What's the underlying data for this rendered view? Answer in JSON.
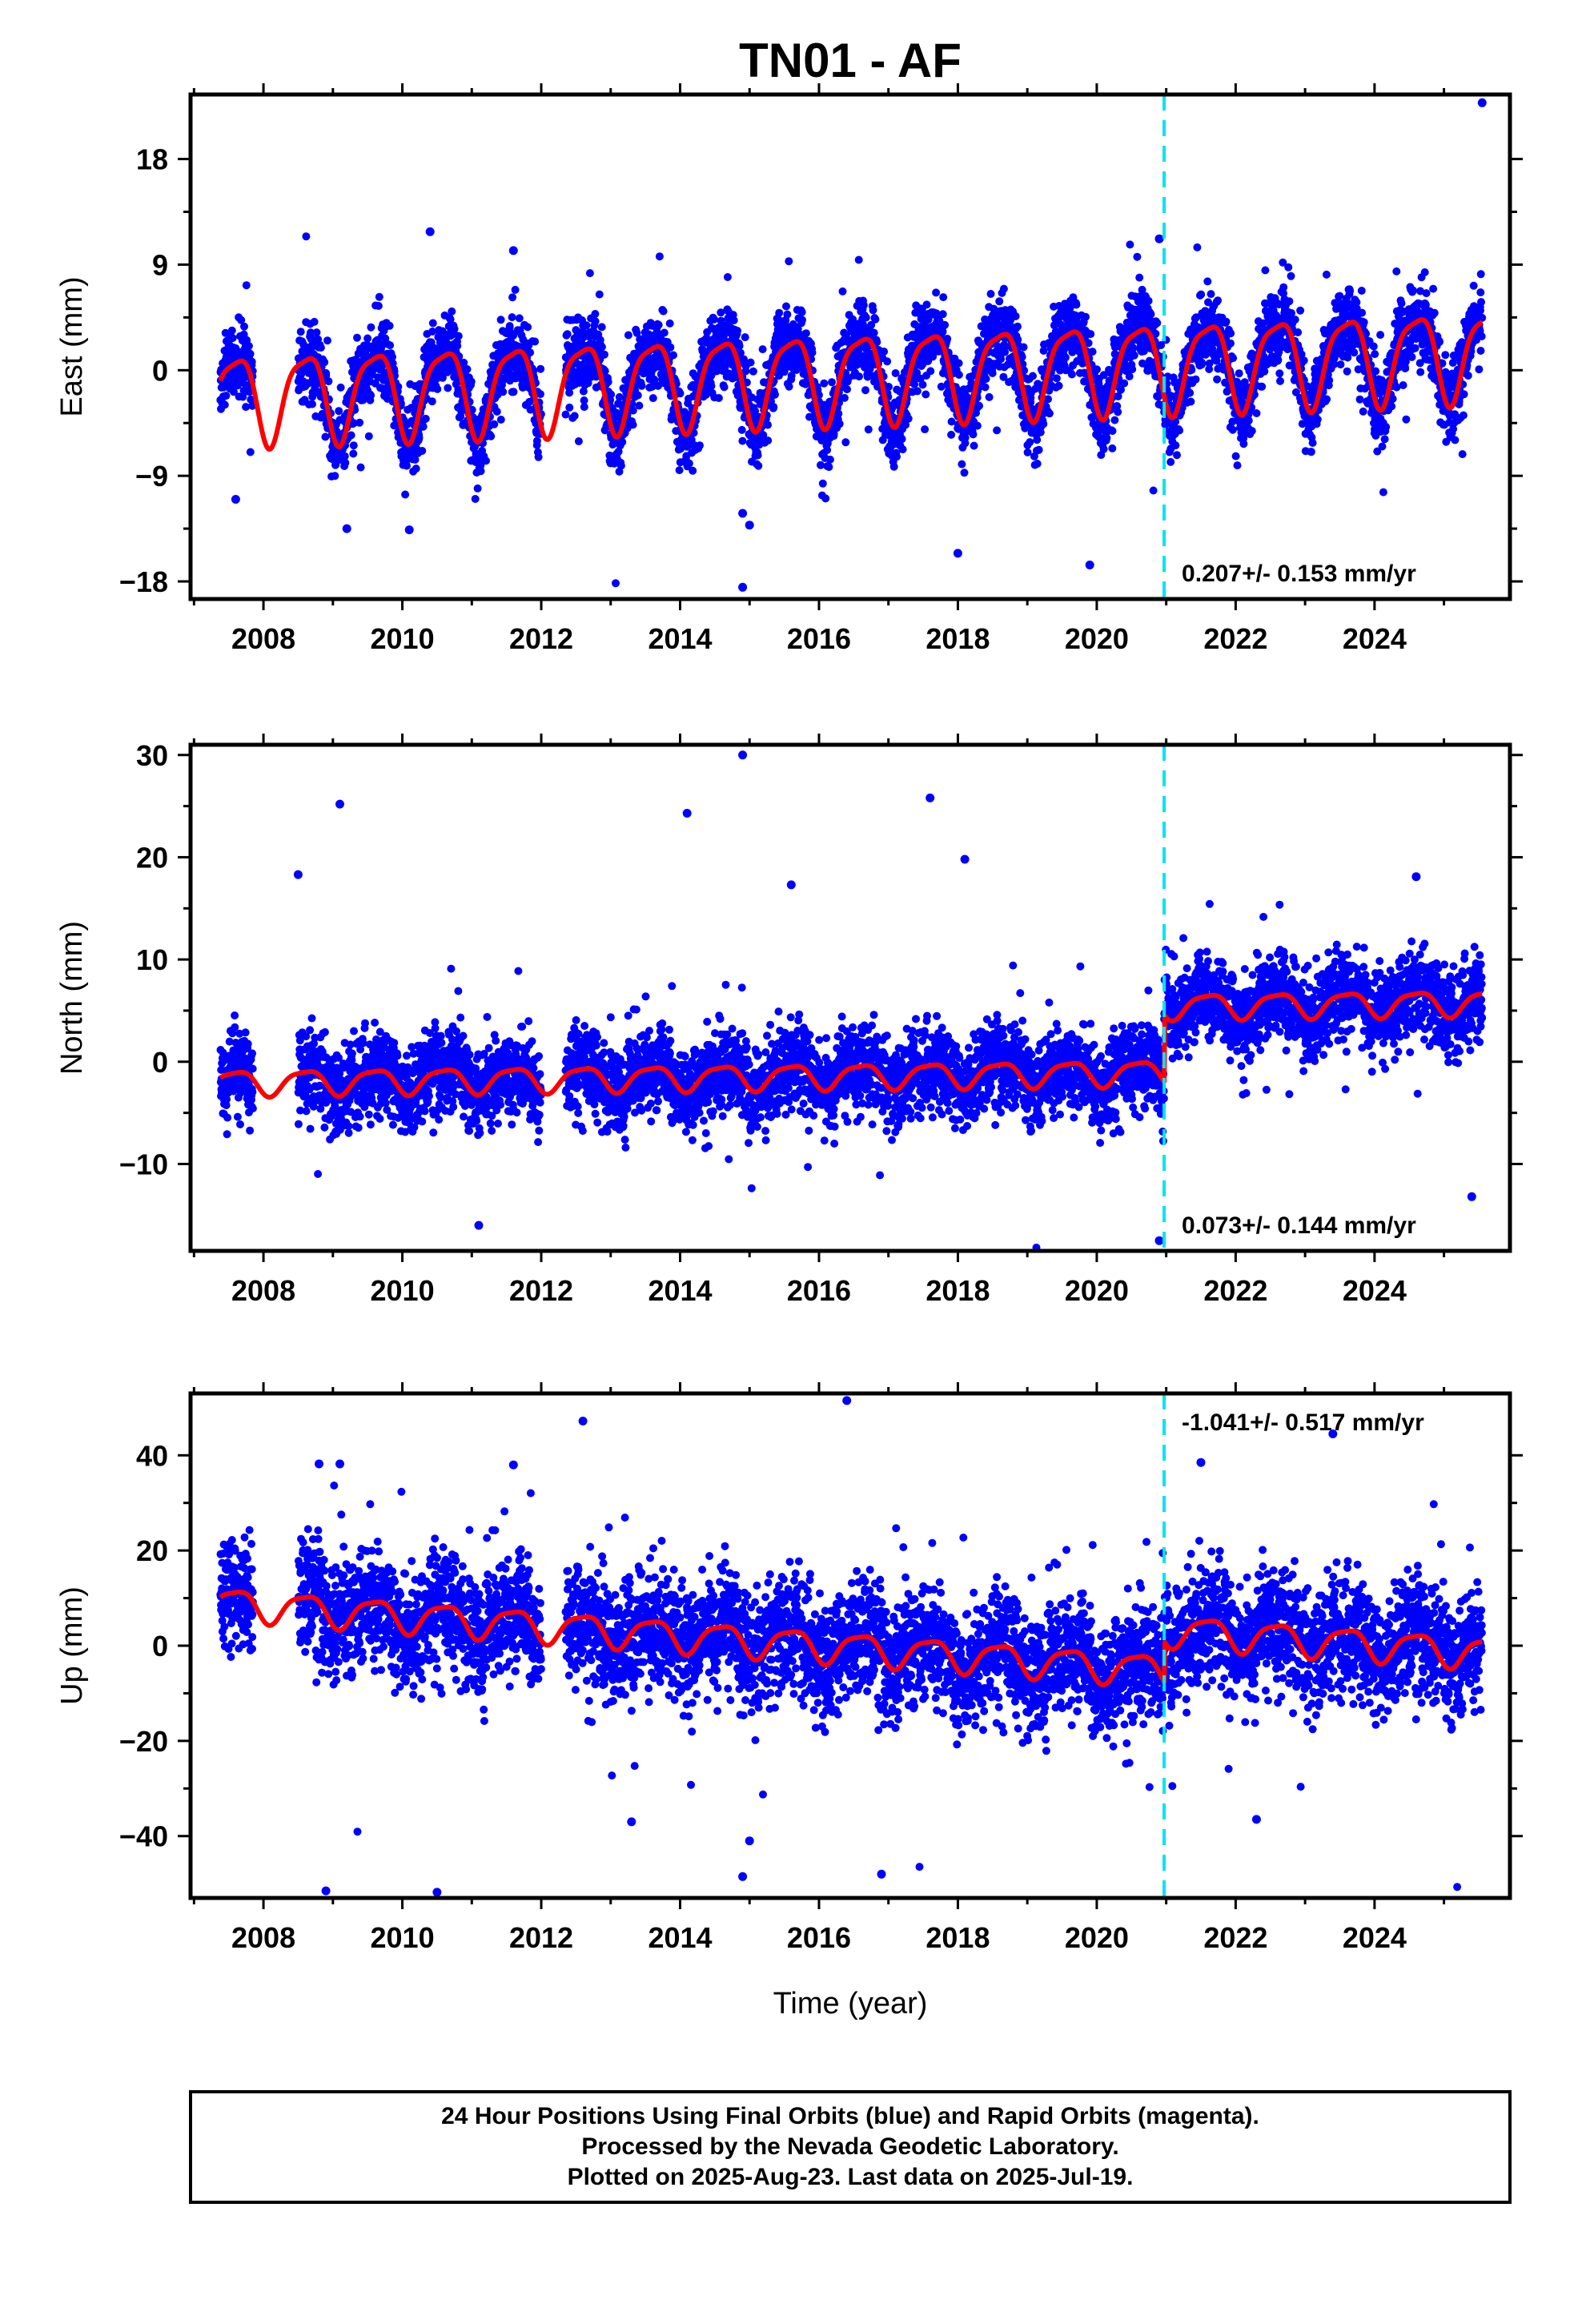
{
  "title": "TN01 - AF",
  "xlabel": "Time (year)",
  "footer": {
    "line1": "24 Hour Positions Using Final Orbits (blue) and Rapid Orbits (magenta).",
    "line2": "Processed by the Nevada Geodetic Laboratory.",
    "line3": "Plotted on 2025-Aug-23. Last data on 2025-Jul-19."
  },
  "colors": {
    "data": "#0000ff",
    "model": "#ff0000",
    "step": "#00e5ee",
    "frame": "#000000"
  },
  "chart_data": [
    {
      "type": "scatter",
      "panel": "east",
      "ylabel": "East (mm)",
      "rate_label": "0.207+/- 0.153 mm/yr",
      "xlim": [
        2006.95,
        2025.95
      ],
      "ylim": [
        -19.5,
        23.5
      ],
      "x_ticks": [
        "2008",
        "2010",
        "2012",
        "2014",
        "2016",
        "2018",
        "2020",
        "2022",
        "2024"
      ],
      "y_ticks": [
        "18",
        "9",
        "0",
        "−9",
        "−18"
      ],
      "y_tick_values": [
        18,
        9,
        0,
        -9,
        -18
      ],
      "step_epoch": 2020.97,
      "data_span": [
        2007.38,
        2025.55
      ],
      "gap": [
        2012.0,
        2012.35
      ],
      "offset_mm": 0.0,
      "annual_amplitude_mm": 3.7,
      "scatter_sigma_mm": 1.6,
      "trend_mm_per_yr": 0.207,
      "reference_epoch": 2016.0,
      "model_offset_mm": -0.5,
      "series": [
        {
          "name": "Final Orbits",
          "color": "#0000ff"
        },
        {
          "name": "model",
          "color": "#ff0000"
        }
      ],
      "outliers": [
        [
          2010.4,
          11.8
        ],
        [
          2011.6,
          10.2
        ],
        [
          2020.9,
          11.2
        ],
        [
          2025.55,
          22.8
        ],
        [
          2018.0,
          -15.6
        ],
        [
          2019.9,
          -16.6
        ],
        [
          2014.9,
          -18.5
        ],
        [
          2009.2,
          -13.5
        ],
        [
          2010.1,
          -13.6
        ],
        [
          2015.0,
          -13.2
        ],
        [
          2014.9,
          -12.2
        ],
        [
          2007.6,
          -11.0
        ]
      ]
    },
    {
      "type": "scatter",
      "panel": "north",
      "ylabel": "North (mm)",
      "rate_label": "0.073+/- 0.144 mm/yr",
      "xlim": [
        2006.95,
        2025.95
      ],
      "ylim": [
        -18.5,
        31.0
      ],
      "x_ticks": [
        "2008",
        "2010",
        "2012",
        "2014",
        "2016",
        "2018",
        "2020",
        "2022",
        "2024"
      ],
      "y_ticks": [
        "30",
        "20",
        "10",
        "0",
        "−10"
      ],
      "y_tick_values": [
        30,
        20,
        10,
        0,
        -10
      ],
      "step_epoch": 2020.97,
      "data_span": [
        2007.38,
        2025.55
      ],
      "gap": [
        2012.0,
        2012.35
      ],
      "offset_mm": 6.5,
      "annual_amplitude_mm": 1.2,
      "scatter_sigma_mm": 2.0,
      "trend_mm_per_yr": 0.073,
      "reference_epoch": 2016.0,
      "model_offset_mm": -1.4,
      "series": [
        {
          "name": "Final Orbits",
          "color": "#0000ff"
        },
        {
          "name": "model",
          "color": "#ff0000"
        }
      ],
      "outliers": [
        [
          2014.9,
          30.0
        ],
        [
          2017.6,
          25.8
        ],
        [
          2009.1,
          25.2
        ],
        [
          2014.1,
          24.3
        ],
        [
          2018.1,
          19.8
        ],
        [
          2008.5,
          18.3
        ],
        [
          2024.6,
          18.1
        ],
        [
          2015.6,
          17.3
        ],
        [
          2011.1,
          -16.0
        ],
        [
          2020.9,
          -17.5
        ],
        [
          2025.4,
          -13.2
        ]
      ]
    },
    {
      "type": "scatter",
      "panel": "up",
      "ylabel": "Up (mm)",
      "rate_label": "-1.041+/- 0.517 mm/yr",
      "xlim": [
        2006.95,
        2025.95
      ],
      "ylim": [
        -53.0,
        53.0
      ],
      "x_ticks": [
        "2008",
        "2010",
        "2012",
        "2014",
        "2016",
        "2018",
        "2020",
        "2022",
        "2024"
      ],
      "y_ticks": [
        "40",
        "20",
        "0",
        "−20",
        "−40"
      ],
      "y_tick_values": [
        40,
        20,
        0,
        -20,
        -40
      ],
      "step_epoch": 2020.97,
      "data_span": [
        2007.38,
        2025.55
      ],
      "gap": [
        2012.0,
        2012.35
      ],
      "offset_mm": 8.5,
      "annual_amplitude_mm": 3.2,
      "scatter_sigma_mm": 6.0,
      "trend_mm_per_yr": -1.041,
      "reference_epoch": 2016.0,
      "model_offset_mm": 0.0,
      "series": [
        {
          "name": "Final Orbits",
          "color": "#0000ff"
        },
        {
          "name": "model",
          "color": "#ff0000"
        }
      ],
      "outliers": [
        [
          2016.4,
          51.5
        ],
        [
          2012.6,
          47.2
        ],
        [
          2023.4,
          44.5
        ],
        [
          2011.6,
          38.0
        ],
        [
          2008.8,
          38.2
        ],
        [
          2009.1,
          38.2
        ],
        [
          2021.5,
          38.5
        ],
        [
          2008.9,
          -51.5
        ],
        [
          2010.5,
          -51.8
        ],
        [
          2014.9,
          -48.5
        ],
        [
          2016.9,
          -48.0
        ],
        [
          2015.0,
          -41.0
        ],
        [
          2013.3,
          -37.0
        ],
        [
          2022.3,
          -36.5
        ]
      ]
    }
  ]
}
